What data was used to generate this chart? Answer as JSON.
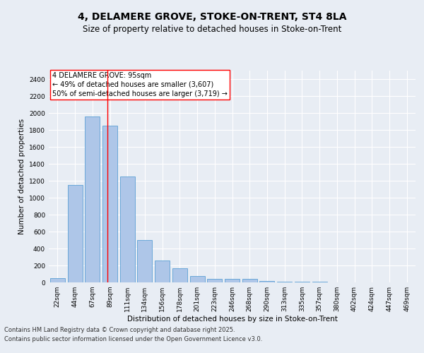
{
  "title_line1": "4, DELAMERE GROVE, STOKE-ON-TRENT, ST4 8LA",
  "title_line2": "Size of property relative to detached houses in Stoke-on-Trent",
  "xlabel": "Distribution of detached houses by size in Stoke-on-Trent",
  "ylabel": "Number of detached properties",
  "categories": [
    "22sqm",
    "44sqm",
    "67sqm",
    "89sqm",
    "111sqm",
    "134sqm",
    "156sqm",
    "178sqm",
    "201sqm",
    "223sqm",
    "246sqm",
    "268sqm",
    "290sqm",
    "313sqm",
    "335sqm",
    "357sqm",
    "380sqm",
    "402sqm",
    "424sqm",
    "447sqm",
    "469sqm"
  ],
  "values": [
    50,
    1150,
    1960,
    1850,
    1250,
    500,
    260,
    170,
    75,
    40,
    40,
    40,
    20,
    10,
    5,
    5,
    2,
    1,
    0,
    0,
    0
  ],
  "bar_color": "#aec6e8",
  "bar_edge_color": "#5a9fd4",
  "vline_x": 2.85,
  "vline_color": "red",
  "annotation_text": "4 DELAMERE GROVE: 95sqm\n← 49% of detached houses are smaller (3,607)\n50% of semi-detached houses are larger (3,719) →",
  "annotation_box_color": "white",
  "annotation_edge_color": "red",
  "background_color": "#e8edf4",
  "plot_bg_color": "#e8edf4",
  "ylim": [
    0,
    2500
  ],
  "yticks": [
    0,
    200,
    400,
    600,
    800,
    1000,
    1200,
    1400,
    1600,
    1800,
    2000,
    2200,
    2400
  ],
  "footer_line1": "Contains HM Land Registry data © Crown copyright and database right 2025.",
  "footer_line2": "Contains public sector information licensed under the Open Government Licence v3.0.",
  "title_fontsize": 10,
  "subtitle_fontsize": 8.5,
  "axis_label_fontsize": 7.5,
  "tick_fontsize": 6.5,
  "annotation_fontsize": 7,
  "footer_fontsize": 6
}
